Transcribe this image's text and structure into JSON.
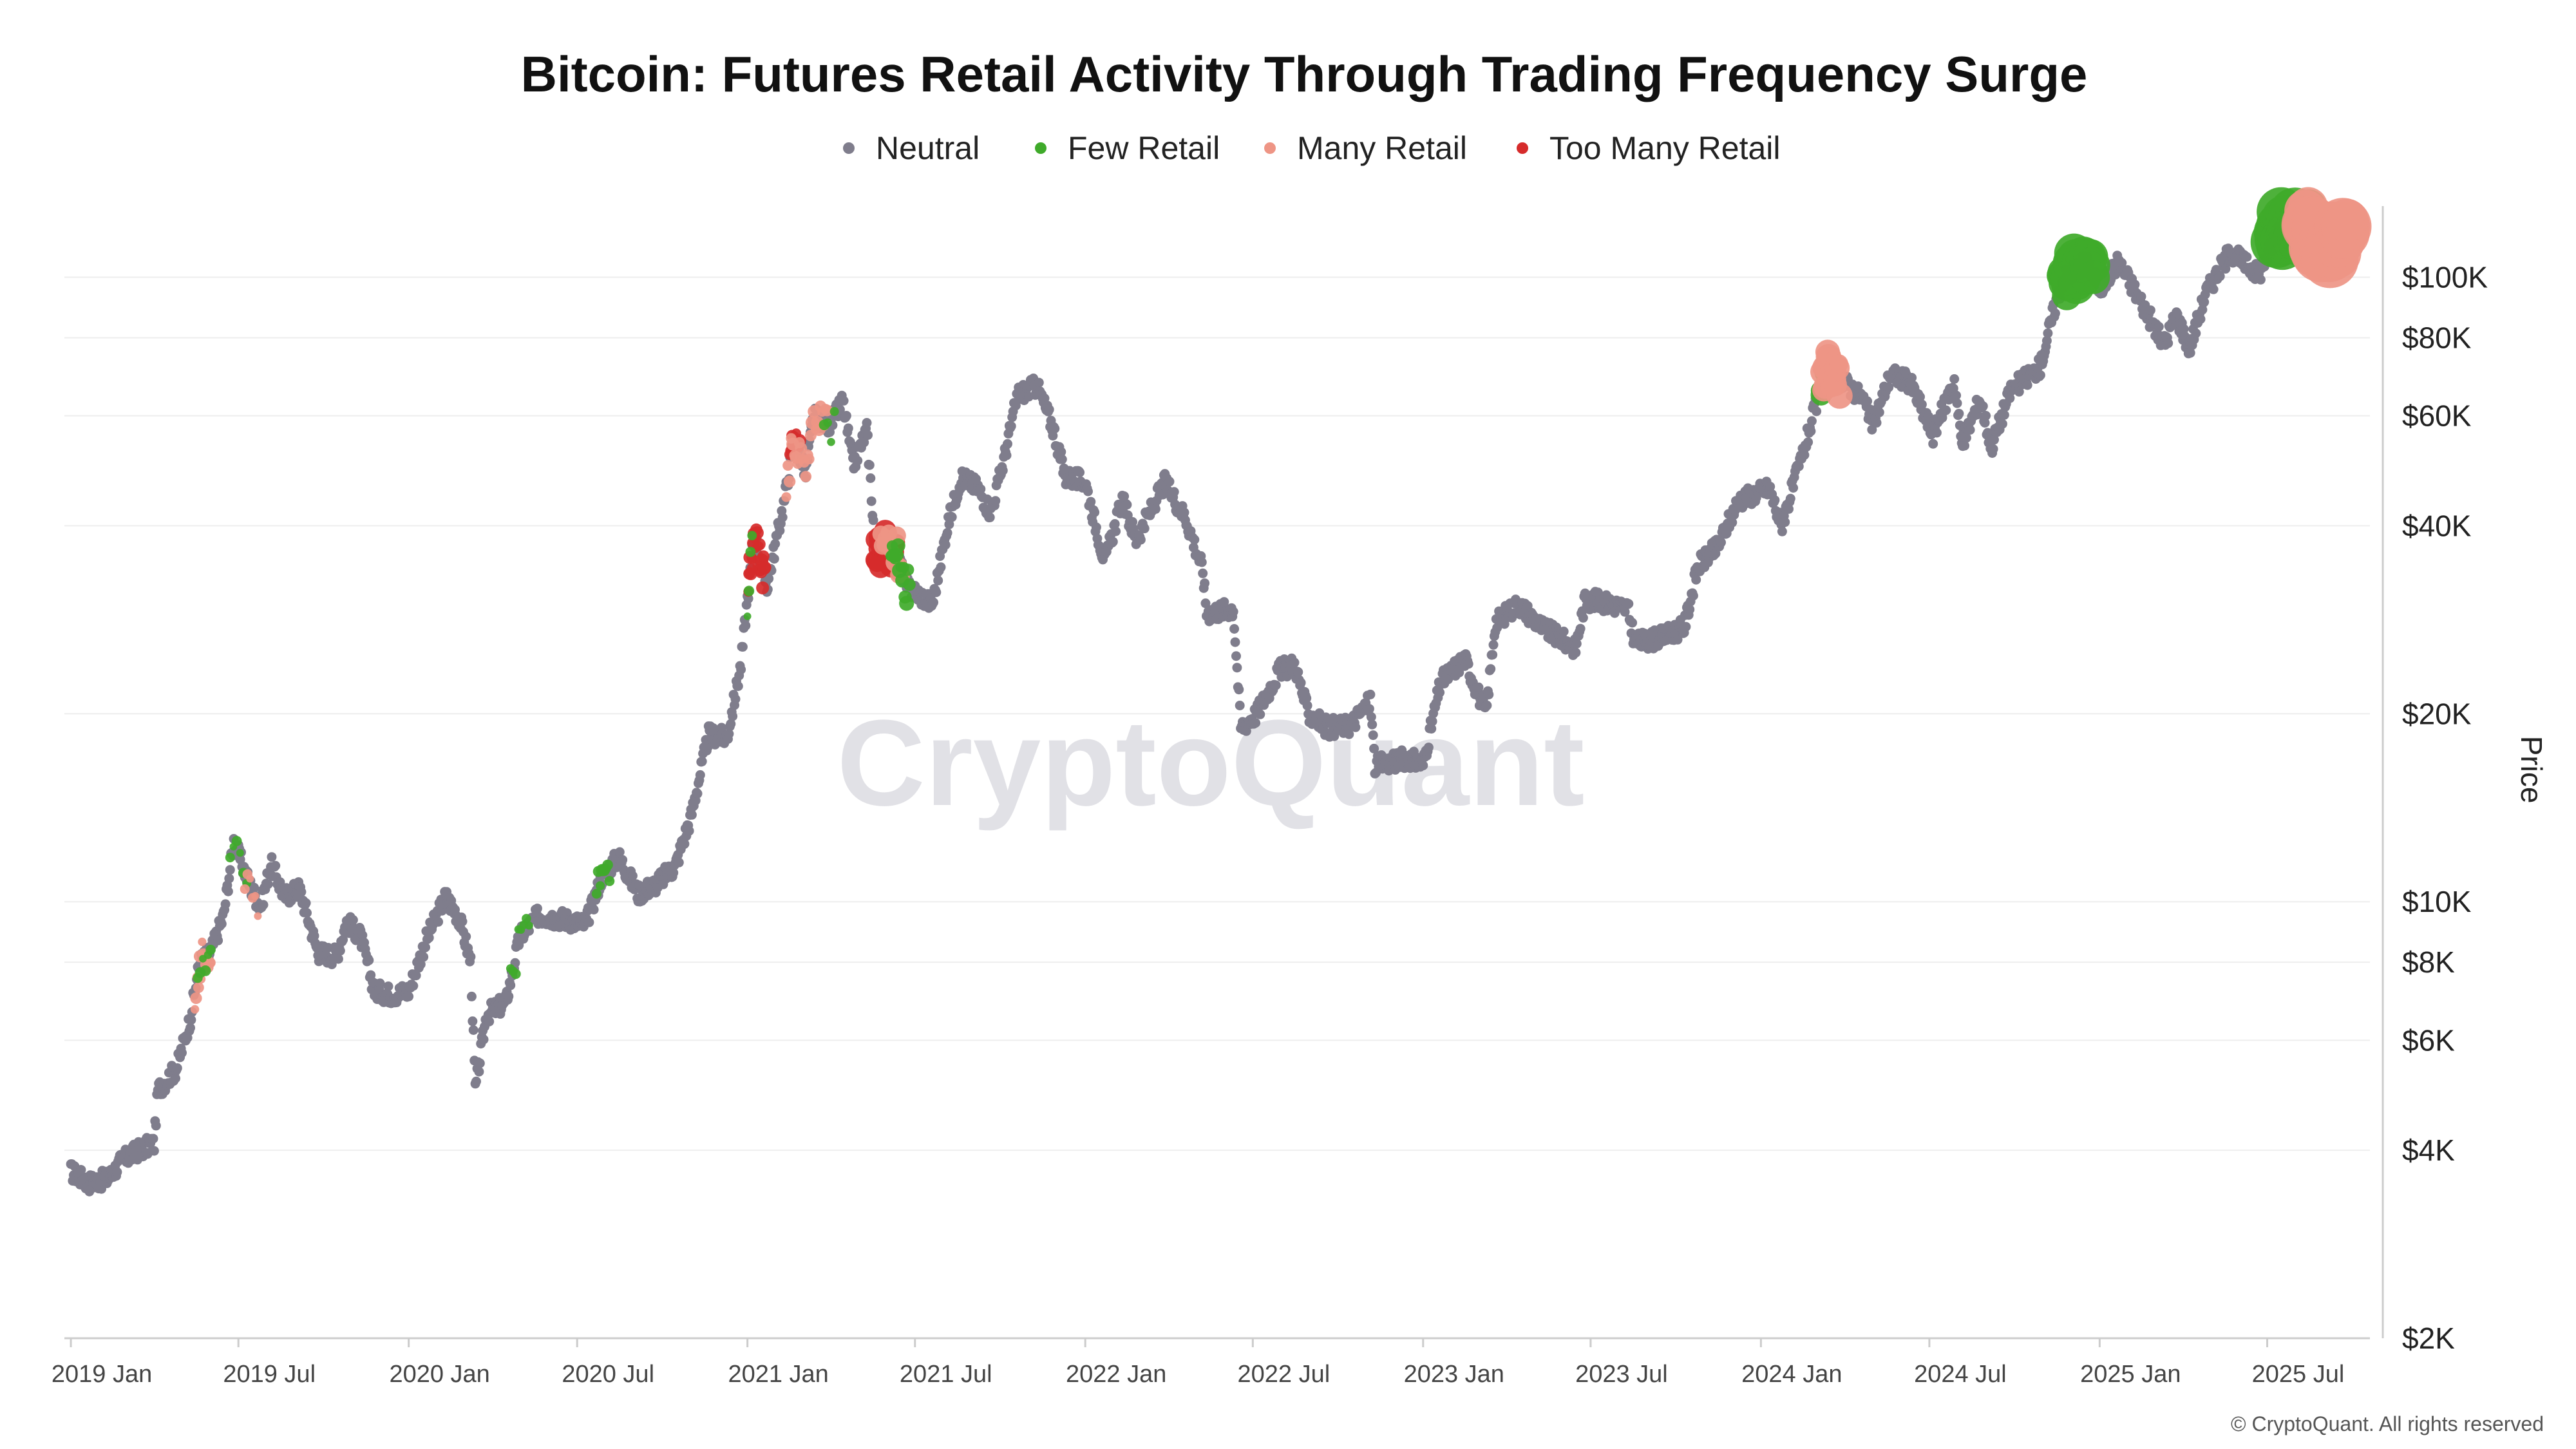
{
  "chart_data": {
    "type": "scatter",
    "title": "Bitcoin: Futures Retail Activity Through Trading Frequency Surge",
    "ylabel": "Price",
    "y_scale": "log",
    "ylim": [
      2000,
      130000
    ],
    "xlim": [
      "2018-12-25",
      "2025-10-20"
    ],
    "grid": true,
    "legend_position": "top-center",
    "watermark": "CryptoQuant",
    "copyright": "© CryptoQuant. All rights reserved",
    "colors": {
      "Neutral": "#7f7d8c",
      "Few Retail": "#3faa2a",
      "Many Retail": "#ee9585",
      "Too Many Retail": "#d62b2b",
      "grid": "#eeeeee",
      "axis": "#cccccc"
    },
    "legend": [
      {
        "name": "Neutral",
        "color": "#7f7d8c"
      },
      {
        "name": "Few Retail",
        "color": "#3faa2a"
      },
      {
        "name": "Many Retail",
        "color": "#ee9585"
      },
      {
        "name": "Too Many Retail",
        "color": "#d62b2b"
      }
    ],
    "x_ticks": [
      {
        "label": "2019 Jan",
        "date": "2019-01-01"
      },
      {
        "label": "2019 Jul",
        "date": "2019-07-01"
      },
      {
        "label": "2020 Jan",
        "date": "2020-01-01"
      },
      {
        "label": "2020 Jul",
        "date": "2020-07-01"
      },
      {
        "label": "2021 Jan",
        "date": "2021-01-01"
      },
      {
        "label": "2021 Jul",
        "date": "2021-07-01"
      },
      {
        "label": "2022 Jan",
        "date": "2022-01-01"
      },
      {
        "label": "2022 Jul",
        "date": "2022-07-01"
      },
      {
        "label": "2023 Jan",
        "date": "2023-01-01"
      },
      {
        "label": "2023 Jul",
        "date": "2023-07-01"
      },
      {
        "label": "2024 Jan",
        "date": "2024-01-01"
      },
      {
        "label": "2024 Jul",
        "date": "2024-07-01"
      },
      {
        "label": "2025 Jan",
        "date": "2025-01-01"
      },
      {
        "label": "2025 Jul",
        "date": "2025-07-01"
      }
    ],
    "y_ticks": [
      {
        "label": "$2K",
        "value": 2000
      },
      {
        "label": "$4K",
        "value": 4000
      },
      {
        "label": "$6K",
        "value": 6000
      },
      {
        "label": "$8K",
        "value": 8000
      },
      {
        "label": "$10K",
        "value": 10000
      },
      {
        "label": "$20K",
        "value": 20000
      },
      {
        "label": "$40K",
        "value": 40000
      },
      {
        "label": "$60K",
        "value": 60000
      },
      {
        "label": "$80K",
        "value": 80000
      },
      {
        "label": "$100K",
        "value": 100000
      }
    ],
    "price_path": [
      [
        "2019-01-01",
        3700
      ],
      [
        "2019-01-20",
        3550
      ],
      [
        "2019-02-10",
        3600
      ],
      [
        "2019-02-25",
        3850
      ],
      [
        "2019-03-15",
        4000
      ],
      [
        "2019-04-01",
        4100
      ],
      [
        "2019-04-05",
        5000
      ],
      [
        "2019-04-25",
        5400
      ],
      [
        "2019-05-10",
        6500
      ],
      [
        "2019-05-20",
        8000
      ],
      [
        "2019-06-01",
        8300
      ],
      [
        "2019-06-15",
        9500
      ],
      [
        "2019-06-26",
        12500
      ],
      [
        "2019-07-05",
        11500
      ],
      [
        "2019-07-15",
        10500
      ],
      [
        "2019-07-25",
        9800
      ],
      [
        "2019-08-05",
        11500
      ],
      [
        "2019-08-20",
        10200
      ],
      [
        "2019-09-05",
        10500
      ],
      [
        "2019-09-25",
        8300
      ],
      [
        "2019-10-15",
        8200
      ],
      [
        "2019-10-26",
        9300
      ],
      [
        "2019-11-10",
        8800
      ],
      [
        "2019-11-25",
        7200
      ],
      [
        "2019-12-15",
        7100
      ],
      [
        "2020-01-01",
        7200
      ],
      [
        "2020-01-20",
        8700
      ],
      [
        "2020-02-10",
        10200
      ],
      [
        "2020-02-25",
        9400
      ],
      [
        "2020-03-08",
        8000
      ],
      [
        "2020-03-13",
        5000
      ],
      [
        "2020-03-25",
        6600
      ],
      [
        "2020-04-15",
        6900
      ],
      [
        "2020-04-30",
        8800
      ],
      [
        "2020-05-20",
        9500
      ],
      [
        "2020-06-15",
        9400
      ],
      [
        "2020-07-10",
        9200
      ],
      [
        "2020-07-28",
        11000
      ],
      [
        "2020-08-15",
        11800
      ],
      [
        "2020-09-05",
        10300
      ],
      [
        "2020-09-25",
        10700
      ],
      [
        "2020-10-15",
        11400
      ],
      [
        "2020-11-01",
        13700
      ],
      [
        "2020-11-20",
        18500
      ],
      [
        "2020-12-10",
        18300
      ],
      [
        "2020-12-25",
        24000
      ],
      [
        "2021-01-08",
        39000
      ],
      [
        "2021-01-22",
        32000
      ],
      [
        "2021-02-10",
        44000
      ],
      [
        "2021-02-21",
        56000
      ],
      [
        "2021-03-05",
        48000
      ],
      [
        "2021-03-13",
        60000
      ],
      [
        "2021-04-01",
        58000
      ],
      [
        "2021-04-14",
        63500
      ],
      [
        "2021-04-25",
        50000
      ],
      [
        "2021-05-10",
        57000
      ],
      [
        "2021-05-19",
        37000
      ],
      [
        "2021-06-10",
        37000
      ],
      [
        "2021-06-22",
        32000
      ],
      [
        "2021-07-20",
        30000
      ],
      [
        "2021-08-05",
        40000
      ],
      [
        "2021-08-20",
        48000
      ],
      [
        "2021-09-07",
        46000
      ],
      [
        "2021-09-21",
        42000
      ],
      [
        "2021-10-05",
        51000
      ],
      [
        "2021-10-20",
        65000
      ],
      [
        "2021-11-10",
        67000
      ],
      [
        "2021-11-28",
        57000
      ],
      [
        "2021-12-10",
        48000
      ],
      [
        "2022-01-01",
        47000
      ],
      [
        "2022-01-22",
        35000
      ],
      [
        "2022-02-10",
        44000
      ],
      [
        "2022-02-25",
        38000
      ],
      [
        "2022-03-28",
        47000
      ],
      [
        "2022-04-20",
        41000
      ],
      [
        "2022-05-08",
        34000
      ],
      [
        "2022-05-12",
        29000
      ],
      [
        "2022-06-10",
        29500
      ],
      [
        "2022-06-18",
        19000
      ],
      [
        "2022-07-05",
        20000
      ],
      [
        "2022-07-30",
        23500
      ],
      [
        "2022-08-15",
        24000
      ],
      [
        "2022-08-30",
        20000
      ],
      [
        "2022-09-20",
        19000
      ],
      [
        "2022-10-15",
        19200
      ],
      [
        "2022-11-05",
        21000
      ],
      [
        "2022-11-10",
        16500
      ],
      [
        "2022-12-15",
        17000
      ],
      [
        "2023-01-01",
        16600
      ],
      [
        "2023-01-20",
        22500
      ],
      [
        "2023-02-15",
        24500
      ],
      [
        "2023-03-10",
        20000
      ],
      [
        "2023-03-20",
        28000
      ],
      [
        "2023-04-14",
        30000
      ],
      [
        "2023-05-10",
        27500
      ],
      [
        "2023-06-15",
        25500
      ],
      [
        "2023-06-25",
        30500
      ],
      [
        "2023-07-15",
        30200
      ],
      [
        "2023-08-10",
        29500
      ],
      [
        "2023-08-18",
        26000
      ],
      [
        "2023-09-15",
        26500
      ],
      [
        "2023-10-10",
        27500
      ],
      [
        "2023-10-25",
        34500
      ],
      [
        "2023-11-15",
        37000
      ],
      [
        "2023-12-08",
        44000
      ],
      [
        "2024-01-10",
        46000
      ],
      [
        "2024-01-23",
        40000
      ],
      [
        "2024-02-15",
        52000
      ],
      [
        "2024-02-29",
        62000
      ],
      [
        "2024-03-13",
        72000
      ],
      [
        "2024-04-05",
        67000
      ],
      [
        "2024-04-20",
        64000
      ],
      [
        "2024-05-01",
        58000
      ],
      [
        "2024-05-20",
        70000
      ],
      [
        "2024-06-10",
        68000
      ],
      [
        "2024-07-05",
        56000
      ],
      [
        "2024-07-28",
        68500
      ],
      [
        "2024-08-05",
        54000
      ],
      [
        "2024-08-25",
        64000
      ],
      [
        "2024-09-06",
        53500
      ],
      [
        "2024-09-27",
        66000
      ],
      [
        "2024-10-29",
        72000
      ],
      [
        "2024-11-12",
        88000
      ],
      [
        "2024-11-22",
        99000
      ],
      [
        "2024-12-17",
        106000
      ],
      [
        "2025-01-02",
        96000
      ],
      [
        "2025-01-21",
        106000
      ],
      [
        "2025-02-05",
        97000
      ],
      [
        "2025-02-28",
        84000
      ],
      [
        "2025-03-11",
        78000
      ],
      [
        "2025-03-25",
        87000
      ],
      [
        "2025-04-08",
        77000
      ],
      [
        "2025-04-25",
        94000
      ],
      [
        "2025-05-22",
        110000
      ],
      [
        "2025-06-22",
        101000
      ],
      [
        "2025-07-14",
        120000
      ],
      [
        "2025-08-14",
        123000
      ],
      [
        "2025-09-01",
        108000
      ],
      [
        "2025-10-06",
        124000
      ]
    ],
    "retail_clusters": [
      {
        "category": "Many Retail",
        "start": "2019-05-15",
        "end": "2019-06-01",
        "size": 8,
        "n": 14
      },
      {
        "category": "Few Retail",
        "start": "2019-05-18",
        "end": "2019-06-01",
        "size": 7,
        "n": 6
      },
      {
        "category": "Few Retail",
        "start": "2019-06-22",
        "end": "2019-07-10",
        "size": 7,
        "n": 6
      },
      {
        "category": "Many Retail",
        "start": "2019-07-08",
        "end": "2019-07-22",
        "size": 7,
        "n": 6
      },
      {
        "category": "Few Retail",
        "start": "2020-04-20",
        "end": "2020-05-10",
        "size": 7,
        "n": 8
      },
      {
        "category": "Few Retail",
        "start": "2020-07-22",
        "end": "2020-08-05",
        "size": 8,
        "n": 8
      },
      {
        "category": "Too Many Retail",
        "start": "2021-01-02",
        "end": "2021-01-20",
        "size": 9,
        "n": 22
      },
      {
        "category": "Few Retail",
        "start": "2021-01-01",
        "end": "2021-01-06",
        "size": 7,
        "n": 4
      },
      {
        "category": "Too Many Retail",
        "start": "2021-02-16",
        "end": "2021-02-26",
        "size": 9,
        "n": 10
      },
      {
        "category": "Many Retail",
        "start": "2021-02-12",
        "end": "2021-03-28",
        "size": 9,
        "n": 26
      },
      {
        "category": "Few Retail",
        "start": "2021-03-25",
        "end": "2021-04-05",
        "size": 7,
        "n": 4
      },
      {
        "category": "Too Many Retail",
        "start": "2021-05-19",
        "end": "2021-06-12",
        "size": 15,
        "n": 34
      },
      {
        "category": "Many Retail",
        "start": "2021-05-25",
        "end": "2021-06-18",
        "size": 12,
        "n": 12
      },
      {
        "category": "Few Retail",
        "start": "2021-06-05",
        "end": "2021-06-25",
        "size": 10,
        "n": 14
      },
      {
        "category": "Few Retail",
        "start": "2024-03-05",
        "end": "2024-03-22",
        "size": 14,
        "n": 18
      },
      {
        "category": "Many Retail",
        "start": "2024-03-08",
        "end": "2024-03-26",
        "size": 17,
        "n": 22
      },
      {
        "category": "Few Retail",
        "start": "2024-11-20",
        "end": "2024-12-25",
        "size": 26,
        "n": 28
      },
      {
        "category": "Few Retail",
        "start": "2025-07-10",
        "end": "2025-08-20",
        "size": 34,
        "n": 34
      },
      {
        "category": "Many Retail",
        "start": "2025-08-10",
        "end": "2025-09-25",
        "size": 38,
        "n": 34
      }
    ]
  }
}
